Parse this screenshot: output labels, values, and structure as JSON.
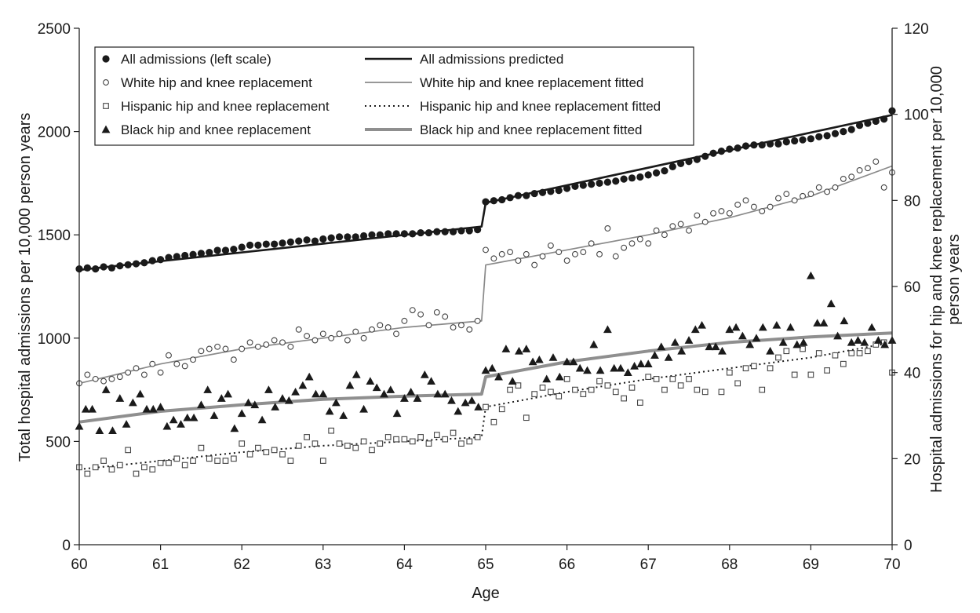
{
  "chart_data": {
    "type": "scatter",
    "title": "",
    "xlabel": "Age",
    "ylabel_left": "Total hospital admissions per 10,000 person years",
    "ylabel_right": "Hospital admissions for hip and knee replacement per 10,000 person years",
    "xlim": [
      60,
      70
    ],
    "ylim_left": [
      0,
      2500
    ],
    "ylim_right": [
      0,
      120
    ],
    "x_ticks": [
      "60",
      "61",
      "62",
      "63",
      "64",
      "65",
      "66",
      "67",
      "68",
      "69",
      "70"
    ],
    "y_ticks_left": [
      "0",
      "500",
      "1000",
      "1500",
      "2000",
      "2500"
    ],
    "y_ticks_right": [
      "0",
      "20",
      "40",
      "60",
      "80",
      "100",
      "120"
    ],
    "grid": false,
    "legend_position": "top-left",
    "legend": [
      {
        "label": "All admissions (left scale)",
        "marker": "filled-circle"
      },
      {
        "label": "White hip and knee replacement",
        "marker": "open-circle"
      },
      {
        "label": "Hispanic hip and knee replacement",
        "marker": "open-square"
      },
      {
        "label": "Black hip and knee replacement",
        "marker": "filled-triangle"
      },
      {
        "label": "All admissions predicted",
        "line": "solid-black"
      },
      {
        "label": "White hip and knee replacement fitted",
        "line": "solid-gray-thin"
      },
      {
        "label": "Hispanic hip and knee replacement fitted",
        "line": "dotted-black"
      },
      {
        "label": "Black hip and knee replacement fitted",
        "line": "solid-gray-thick"
      }
    ],
    "series": [
      {
        "name": "All admissions (left scale)",
        "axis": "left",
        "kind": "points",
        "marker": "filled-circle",
        "color": "#1a1a1a",
        "x": [
          60.0,
          60.1,
          60.2,
          60.3,
          60.4,
          60.5,
          60.6,
          60.7,
          60.8,
          60.9,
          61.0,
          61.1,
          61.2,
          61.3,
          61.4,
          61.5,
          61.6,
          61.7,
          61.8,
          61.9,
          62.0,
          62.1,
          62.2,
          62.3,
          62.4,
          62.5,
          62.6,
          62.7,
          62.8,
          62.9,
          63.0,
          63.1,
          63.2,
          63.3,
          63.4,
          63.5,
          63.6,
          63.7,
          63.8,
          63.9,
          64.0,
          64.1,
          64.2,
          64.3,
          64.4,
          64.5,
          64.6,
          64.7,
          64.8,
          64.9,
          65.0,
          65.1,
          65.2,
          65.3,
          65.4,
          65.5,
          65.6,
          65.7,
          65.8,
          65.9,
          66.0,
          66.1,
          66.2,
          66.3,
          66.4,
          66.5,
          66.6,
          66.7,
          66.8,
          66.9,
          67.0,
          67.1,
          67.2,
          67.3,
          67.4,
          67.5,
          67.6,
          67.7,
          67.8,
          67.9,
          68.0,
          68.1,
          68.2,
          68.3,
          68.4,
          68.5,
          68.6,
          68.7,
          68.8,
          68.9,
          69.0,
          69.1,
          69.2,
          69.3,
          69.4,
          69.5,
          69.6,
          69.7,
          69.8,
          69.9,
          70.0
        ],
        "y": [
          1335,
          1340,
          1335,
          1345,
          1340,
          1350,
          1355,
          1360,
          1365,
          1375,
          1380,
          1390,
          1395,
          1400,
          1405,
          1410,
          1415,
          1425,
          1425,
          1430,
          1440,
          1450,
          1450,
          1455,
          1455,
          1460,
          1465,
          1470,
          1475,
          1470,
          1480,
          1485,
          1490,
          1490,
          1490,
          1495,
          1500,
          1500,
          1505,
          1505,
          1505,
          1505,
          1510,
          1510,
          1515,
          1515,
          1515,
          1520,
          1520,
          1525,
          1660,
          1665,
          1670,
          1680,
          1690,
          1690,
          1700,
          1705,
          1710,
          1715,
          1725,
          1735,
          1740,
          1745,
          1750,
          1755,
          1760,
          1770,
          1775,
          1780,
          1790,
          1800,
          1810,
          1830,
          1845,
          1855,
          1865,
          1880,
          1895,
          1905,
          1915,
          1920,
          1930,
          1935,
          1935,
          1940,
          1940,
          1950,
          1955,
          1960,
          1965,
          1975,
          1980,
          1990,
          2000,
          2010,
          2030,
          2040,
          2050,
          2060,
          2100
        ]
      },
      {
        "name": "White hip and knee replacement",
        "axis": "right",
        "kind": "points",
        "marker": "open-circle",
        "color": "#444444",
        "x": [
          60.0,
          60.1,
          60.2,
          60.3,
          60.4,
          60.5,
          60.6,
          60.7,
          60.8,
          60.9,
          61.0,
          61.1,
          61.2,
          61.3,
          61.4,
          61.5,
          61.6,
          61.7,
          61.8,
          61.9,
          62.0,
          62.1,
          62.2,
          62.3,
          62.4,
          62.5,
          62.6,
          62.7,
          62.8,
          62.9,
          63.0,
          63.1,
          63.2,
          63.3,
          63.4,
          63.5,
          63.6,
          63.7,
          63.8,
          63.9,
          64.0,
          64.1,
          64.2,
          64.3,
          64.4,
          64.5,
          64.6,
          64.7,
          64.8,
          64.9,
          65.0,
          65.1,
          65.2,
          65.3,
          65.4,
          65.5,
          65.6,
          65.7,
          65.8,
          65.9,
          66.0,
          66.1,
          66.2,
          66.3,
          66.4,
          66.5,
          66.6,
          66.7,
          66.8,
          66.9,
          67.0,
          67.1,
          67.2,
          67.3,
          67.4,
          67.5,
          67.6,
          67.7,
          67.8,
          67.9,
          68.0,
          68.1,
          68.2,
          68.3,
          68.4,
          68.5,
          68.6,
          68.7,
          68.8,
          68.9,
          69.0,
          69.1,
          69.2,
          69.3,
          69.4,
          69.5,
          69.6,
          69.7,
          69.8,
          69.9,
          70.0
        ],
        "y": [
          37.5,
          39.5,
          38.5,
          38.0,
          38.5,
          39.0,
          40.0,
          41.0,
          39.5,
          42.0,
          40.0,
          44.0,
          42.0,
          41.5,
          43.0,
          45.0,
          45.5,
          46.0,
          45.5,
          43.0,
          45.5,
          47.0,
          46.0,
          46.5,
          47.5,
          47.0,
          46.0,
          50.0,
          48.5,
          47.5,
          49.0,
          48.0,
          49.0,
          47.5,
          49.5,
          48.0,
          50.0,
          51.0,
          50.5,
          49.0,
          52.0,
          54.5,
          53.5,
          51.0,
          54.0,
          53.0,
          50.5,
          51.0,
          50.0,
          52.0,
          68.5,
          66.5,
          67.5,
          68.0,
          66.0,
          67.5,
          65.0,
          67.0,
          69.5,
          68.0,
          66.0,
          67.5,
          68.0,
          70.0,
          67.5,
          73.5,
          67.0,
          69.0,
          70.0,
          71.0,
          70.0,
          73.0,
          72.0,
          74.0,
          74.5,
          73.0,
          76.5,
          75.0,
          77.0,
          77.5,
          77.0,
          79.0,
          80.0,
          78.5,
          77.5,
          78.5,
          80.5,
          81.5,
          80.0,
          81.0,
          81.5,
          83.0,
          82.0,
          83.0,
          85.0,
          85.5,
          87.0,
          87.5,
          89.0,
          83.0,
          86.5
        ]
      },
      {
        "name": "Hispanic hip and knee replacement",
        "axis": "right",
        "kind": "points",
        "marker": "open-square",
        "color": "#444444",
        "x": [
          60.0,
          60.1,
          60.2,
          60.3,
          60.4,
          60.5,
          60.6,
          60.7,
          60.8,
          60.9,
          61.0,
          61.1,
          61.2,
          61.3,
          61.4,
          61.5,
          61.6,
          61.7,
          61.8,
          61.9,
          62.0,
          62.1,
          62.2,
          62.3,
          62.4,
          62.5,
          62.6,
          62.7,
          62.8,
          62.9,
          63.0,
          63.1,
          63.2,
          63.3,
          63.4,
          63.5,
          63.6,
          63.7,
          63.8,
          63.9,
          64.0,
          64.1,
          64.2,
          64.3,
          64.4,
          64.5,
          64.6,
          64.7,
          64.8,
          64.9,
          65.0,
          65.1,
          65.2,
          65.3,
          65.4,
          65.5,
          65.6,
          65.7,
          65.8,
          65.9,
          66.0,
          66.1,
          66.2,
          66.3,
          66.4,
          66.5,
          66.6,
          66.7,
          66.8,
          66.9,
          67.0,
          67.1,
          67.2,
          67.3,
          67.4,
          67.5,
          67.6,
          67.7,
          67.8,
          67.9,
          68.0,
          68.1,
          68.2,
          68.3,
          68.4,
          68.5,
          68.6,
          68.7,
          68.8,
          68.9,
          69.0,
          69.1,
          69.2,
          69.3,
          69.4,
          69.5,
          69.6,
          69.7,
          69.8,
          69.9,
          70.0
        ],
        "y": [
          18.0,
          16.5,
          18.0,
          19.5,
          17.5,
          18.5,
          22.0,
          16.5,
          18.0,
          17.5,
          19.0,
          19.0,
          20.0,
          18.5,
          19.5,
          22.5,
          20.0,
          19.5,
          19.5,
          20.0,
          23.5,
          21.0,
          22.5,
          21.5,
          22.0,
          21.0,
          19.5,
          23.0,
          25.0,
          23.5,
          19.5,
          26.5,
          23.5,
          23.0,
          22.5,
          24.0,
          22.0,
          23.5,
          25.0,
          24.5,
          24.5,
          24.0,
          25.0,
          23.5,
          25.5,
          24.5,
          26.0,
          23.5,
          24.0,
          25.0,
          32.0,
          28.5,
          31.5,
          36.0,
          37.0,
          29.5,
          35.0,
          36.5,
          35.5,
          34.5,
          38.5,
          36.0,
          35.0,
          36.0,
          38.0,
          37.0,
          35.5,
          34.0,
          36.5,
          33.0,
          39.0,
          38.5,
          36.0,
          38.5,
          37.0,
          38.5,
          36.0,
          35.5,
          46.0,
          35.5,
          40.0,
          37.5,
          41.0,
          41.5,
          36.0,
          41.0,
          43.5,
          45.0,
          39.5,
          45.5,
          39.5,
          44.5,
          40.5,
          44.0,
          42.0,
          44.5,
          44.5,
          45.0,
          46.5,
          47.0,
          40.0
        ]
      },
      {
        "name": "Black hip and knee replacement",
        "axis": "right",
        "kind": "points",
        "marker": "filled-triangle",
        "color": "#1a1a1a",
        "x": [
          60.0,
          60.08,
          60.16,
          60.25,
          60.33,
          60.41,
          60.5,
          60.58,
          60.66,
          60.75,
          60.83,
          60.91,
          61.0,
          61.08,
          61.16,
          61.25,
          61.33,
          61.41,
          61.5,
          61.58,
          61.66,
          61.75,
          61.83,
          61.91,
          62.0,
          62.08,
          62.16,
          62.25,
          62.33,
          62.41,
          62.5,
          62.58,
          62.66,
          62.75,
          62.83,
          62.91,
          63.0,
          63.08,
          63.16,
          63.25,
          63.33,
          63.41,
          63.5,
          63.58,
          63.66,
          63.75,
          63.83,
          63.91,
          64.0,
          64.08,
          64.16,
          64.25,
          64.33,
          64.41,
          64.5,
          64.58,
          64.66,
          64.75,
          64.83,
          64.91,
          65.0,
          65.08,
          65.16,
          65.25,
          65.33,
          65.41,
          65.5,
          65.58,
          65.66,
          65.75,
          65.83,
          65.91,
          66.0,
          66.08,
          66.16,
          66.25,
          66.33,
          66.41,
          66.5,
          66.58,
          66.66,
          66.75,
          66.83,
          66.91,
          67.0,
          67.08,
          67.16,
          67.25,
          67.33,
          67.41,
          67.5,
          67.58,
          67.66,
          67.75,
          67.83,
          67.91,
          68.0,
          68.08,
          68.16,
          68.25,
          68.33,
          68.41,
          68.5,
          68.58,
          68.66,
          68.75,
          68.83,
          68.91,
          69.0,
          69.08,
          69.16,
          69.25,
          69.33,
          69.41,
          69.5,
          69.58,
          69.66,
          69.75,
          69.83,
          69.91,
          70.0
        ],
        "y": [
          27.5,
          31.5,
          31.5,
          26.5,
          36.0,
          26.5,
          34.0,
          28.0,
          33.0,
          35.0,
          31.5,
          31.5,
          32.0,
          27.5,
          29.0,
          28.0,
          29.5,
          29.5,
          32.5,
          36.0,
          30.0,
          34.0,
          35.0,
          27.0,
          30.5,
          33.0,
          32.5,
          29.0,
          36.0,
          32.0,
          34.0,
          33.5,
          35.5,
          37.0,
          39.0,
          35.0,
          35.0,
          31.0,
          33.0,
          30.0,
          37.0,
          39.5,
          31.5,
          38.0,
          36.5,
          35.0,
          36.0,
          30.5,
          34.0,
          35.5,
          34.0,
          39.5,
          38.0,
          35.0,
          35.0,
          33.5,
          31.0,
          33.0,
          33.5,
          32.0,
          40.5,
          41.0,
          39.0,
          45.5,
          38.0,
          45.0,
          45.5,
          42.5,
          43.0,
          38.5,
          43.5,
          39.0,
          42.5,
          42.5,
          41.0,
          40.5,
          46.5,
          40.5,
          50.0,
          41.0,
          41.0,
          40.0,
          41.5,
          42.0,
          42.0,
          44.0,
          46.0,
          43.5,
          47.0,
          45.0,
          47.5,
          50.0,
          51.0,
          46.0,
          46.0,
          45.0,
          50.0,
          50.5,
          48.5,
          46.5,
          48.0,
          50.5,
          45.0,
          51.0,
          47.0,
          50.5,
          46.5,
          47.0,
          62.5,
          51.5,
          51.5,
          56.0,
          48.5,
          52.0,
          47.0,
          47.5,
          47.0,
          50.5,
          47.5,
          46.5,
          47.5
        ]
      },
      {
        "name": "All admissions predicted",
        "axis": "left",
        "kind": "line",
        "style": "solid-black",
        "x": [
          60,
          64.95,
          65.0,
          70
        ],
        "y": [
          1330,
          1540,
          1655,
          2080
        ]
      },
      {
        "name": "White hip and knee replacement fitted",
        "axis": "right",
        "kind": "line",
        "style": "solid-gray-thin",
        "x": [
          60,
          61,
          62,
          63,
          64,
          64.95,
          65.0,
          66,
          67,
          68,
          69,
          70
        ],
        "y": [
          37.5,
          42.0,
          45.5,
          48.0,
          50.5,
          52.0,
          65.0,
          68.5,
          72.0,
          76.0,
          81.0,
          88.0
        ]
      },
      {
        "name": "Hispanic hip and knee replacement fitted",
        "axis": "right",
        "kind": "line",
        "style": "dotted-black",
        "x": [
          60,
          61,
          62,
          63,
          64,
          64.95,
          65.0,
          66,
          67,
          68,
          69,
          70
        ],
        "y": [
          17.5,
          19.5,
          21.5,
          23.0,
          24.0,
          25.0,
          32.0,
          35.5,
          38.5,
          41.0,
          43.5,
          47.0
        ]
      },
      {
        "name": "Black hip and knee replacement fitted",
        "axis": "right",
        "kind": "line",
        "style": "solid-gray-thick",
        "x": [
          60,
          61,
          62,
          63,
          64,
          64.95,
          65.0,
          66,
          67,
          68,
          69,
          70
        ],
        "y": [
          28.5,
          31.0,
          32.5,
          33.8,
          34.5,
          35.0,
          39.0,
          42.5,
          45.0,
          47.0,
          48.3,
          49.2
        ]
      }
    ]
  }
}
